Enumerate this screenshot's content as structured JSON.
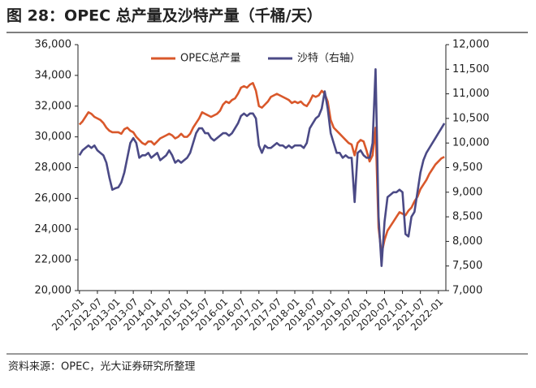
{
  "chart_data": {
    "type": "line",
    "title": "图 28：OPEC 总产量及沙特产量（千桶/天）",
    "source": "资料来源：OPEC，光大证券研究所整理",
    "categories": [
      "2012-01",
      null,
      null,
      null,
      null,
      null,
      "2012-07",
      null,
      null,
      null,
      null,
      null,
      "2013-01",
      null,
      null,
      null,
      null,
      null,
      "2013-07",
      null,
      null,
      null,
      null,
      null,
      "2014-01",
      null,
      null,
      null,
      null,
      null,
      "2014-07",
      null,
      null,
      null,
      null,
      null,
      "2015-01",
      null,
      null,
      null,
      null,
      null,
      "2015-07",
      null,
      null,
      null,
      null,
      null,
      "2016-01",
      null,
      null,
      null,
      null,
      null,
      "2016-07",
      null,
      null,
      null,
      null,
      null,
      "2017-01",
      null,
      null,
      null,
      null,
      null,
      "2017-07",
      null,
      null,
      null,
      null,
      null,
      "2018-01",
      null,
      null,
      null,
      null,
      null,
      "2018-07",
      null,
      null,
      null,
      null,
      null,
      "2019-01",
      null,
      null,
      null,
      null,
      null,
      "2019-07",
      null,
      null,
      null,
      null,
      null,
      "2020-01",
      null,
      null,
      null,
      null,
      null,
      "2020-07",
      null,
      null,
      null,
      null,
      null,
      "2021-01",
      null,
      null,
      null,
      null,
      null,
      "2021-07",
      null,
      null,
      null,
      null,
      null,
      "2022-01",
      null,
      null
    ],
    "series": [
      {
        "name": "OPEC总产量",
        "color": "#d9582b",
        "axis": "y",
        "values": [
          30800,
          31000,
          31300,
          31600,
          31500,
          31300,
          31200,
          31100,
          30900,
          30600,
          30400,
          30300,
          30300,
          30300,
          30200,
          30500,
          30600,
          30400,
          30300,
          30000,
          29800,
          29600,
          29500,
          29700,
          29700,
          29500,
          29700,
          29900,
          30000,
          30100,
          30200,
          30100,
          29900,
          30000,
          30200,
          30000,
          30000,
          30200,
          30600,
          30900,
          31200,
          31600,
          31500,
          31400,
          31300,
          31400,
          31500,
          31700,
          32100,
          32300,
          32200,
          32400,
          32500,
          32800,
          33200,
          33300,
          33200,
          33400,
          33500,
          33000,
          32000,
          31900,
          32100,
          32300,
          32600,
          32700,
          32800,
          32700,
          32600,
          32500,
          32400,
          32200,
          32300,
          32200,
          32300,
          32100,
          32000,
          32300,
          32700,
          32600,
          32700,
          33000,
          32800,
          32300,
          31100,
          30600,
          30400,
          30200,
          30000,
          29800,
          29600,
          29500,
          28800,
          29600,
          29800,
          29700,
          29100,
          28400,
          28800,
          30600,
          24100,
          22400,
          23300,
          23900,
          24200,
          24500,
          24800,
          25100,
          25000,
          24900,
          25200,
          25400,
          25800,
          26100,
          26600,
          26900,
          27200,
          27600,
          27900,
          28200,
          28400,
          28600,
          28700
        ]
      },
      {
        "name": "沙特（右轴）",
        "color": "#4b4a86",
        "axis": "y2",
        "values": [
          9750,
          9850,
          9900,
          9950,
          9900,
          9950,
          9850,
          9800,
          9750,
          9600,
          9300,
          9050,
          9080,
          9100,
          9200,
          9400,
          9700,
          10000,
          10100,
          10000,
          9700,
          9750,
          9750,
          9800,
          9700,
          9750,
          9800,
          9650,
          9700,
          9750,
          9850,
          9750,
          9600,
          9650,
          9600,
          9650,
          9700,
          9800,
          10000,
          10200,
          10300,
          10300,
          10200,
          10200,
          10100,
          10050,
          10100,
          10150,
          10200,
          10200,
          10150,
          10200,
          10300,
          10400,
          10550,
          10600,
          10550,
          10600,
          10600,
          10500,
          9950,
          9800,
          9950,
          9900,
          9900,
          9950,
          10000,
          9950,
          9950,
          9900,
          9950,
          9900,
          9950,
          9950,
          9950,
          9900,
          10000,
          10300,
          10400,
          10500,
          10550,
          10700,
          11050,
          10700,
          10200,
          10000,
          9800,
          9800,
          9700,
          9750,
          9700,
          9700,
          8800,
          9800,
          9850,
          9750,
          9700,
          9700,
          10000,
          11500,
          8500,
          7500,
          8400,
          8900,
          8950,
          9000,
          9000,
          9050,
          9000,
          8150,
          8100,
          8500,
          8600,
          9000,
          9400,
          9650,
          9800,
          9900,
          10000,
          10100,
          10200,
          10300,
          10400
        ]
      }
    ],
    "ylim": [
      20000,
      36000
    ],
    "yticks": [
      {
        "value": 20000,
        "label": "20,000"
      },
      {
        "value": 22000,
        "label": "22,000"
      },
      {
        "value": 24000,
        "label": "24,000"
      },
      {
        "value": 26000,
        "label": "26,000"
      },
      {
        "value": 28000,
        "label": "28,000"
      },
      {
        "value": 30000,
        "label": "30,000"
      },
      {
        "value": 32000,
        "label": "32,000"
      },
      {
        "value": 34000,
        "label": "34,000"
      },
      {
        "value": 36000,
        "label": "36,000"
      }
    ],
    "y2lim": [
      7000,
      12000
    ],
    "y2ticks": [
      {
        "value": 7000,
        "label": "7,000"
      },
      {
        "value": 7500,
        "label": "7,500"
      },
      {
        "value": 8000,
        "label": "8,000"
      },
      {
        "value": 8500,
        "label": "8,500"
      },
      {
        "value": 9000,
        "label": "9,000"
      },
      {
        "value": 9500,
        "label": "9,500"
      },
      {
        "value": 10000,
        "label": "10,000"
      },
      {
        "value": 10500,
        "label": "10,500"
      },
      {
        "value": 11000,
        "label": "11,000"
      },
      {
        "value": 11500,
        "label": "11,500"
      },
      {
        "value": 12000,
        "label": "12,000"
      }
    ],
    "grid": false,
    "legend": "top"
  }
}
